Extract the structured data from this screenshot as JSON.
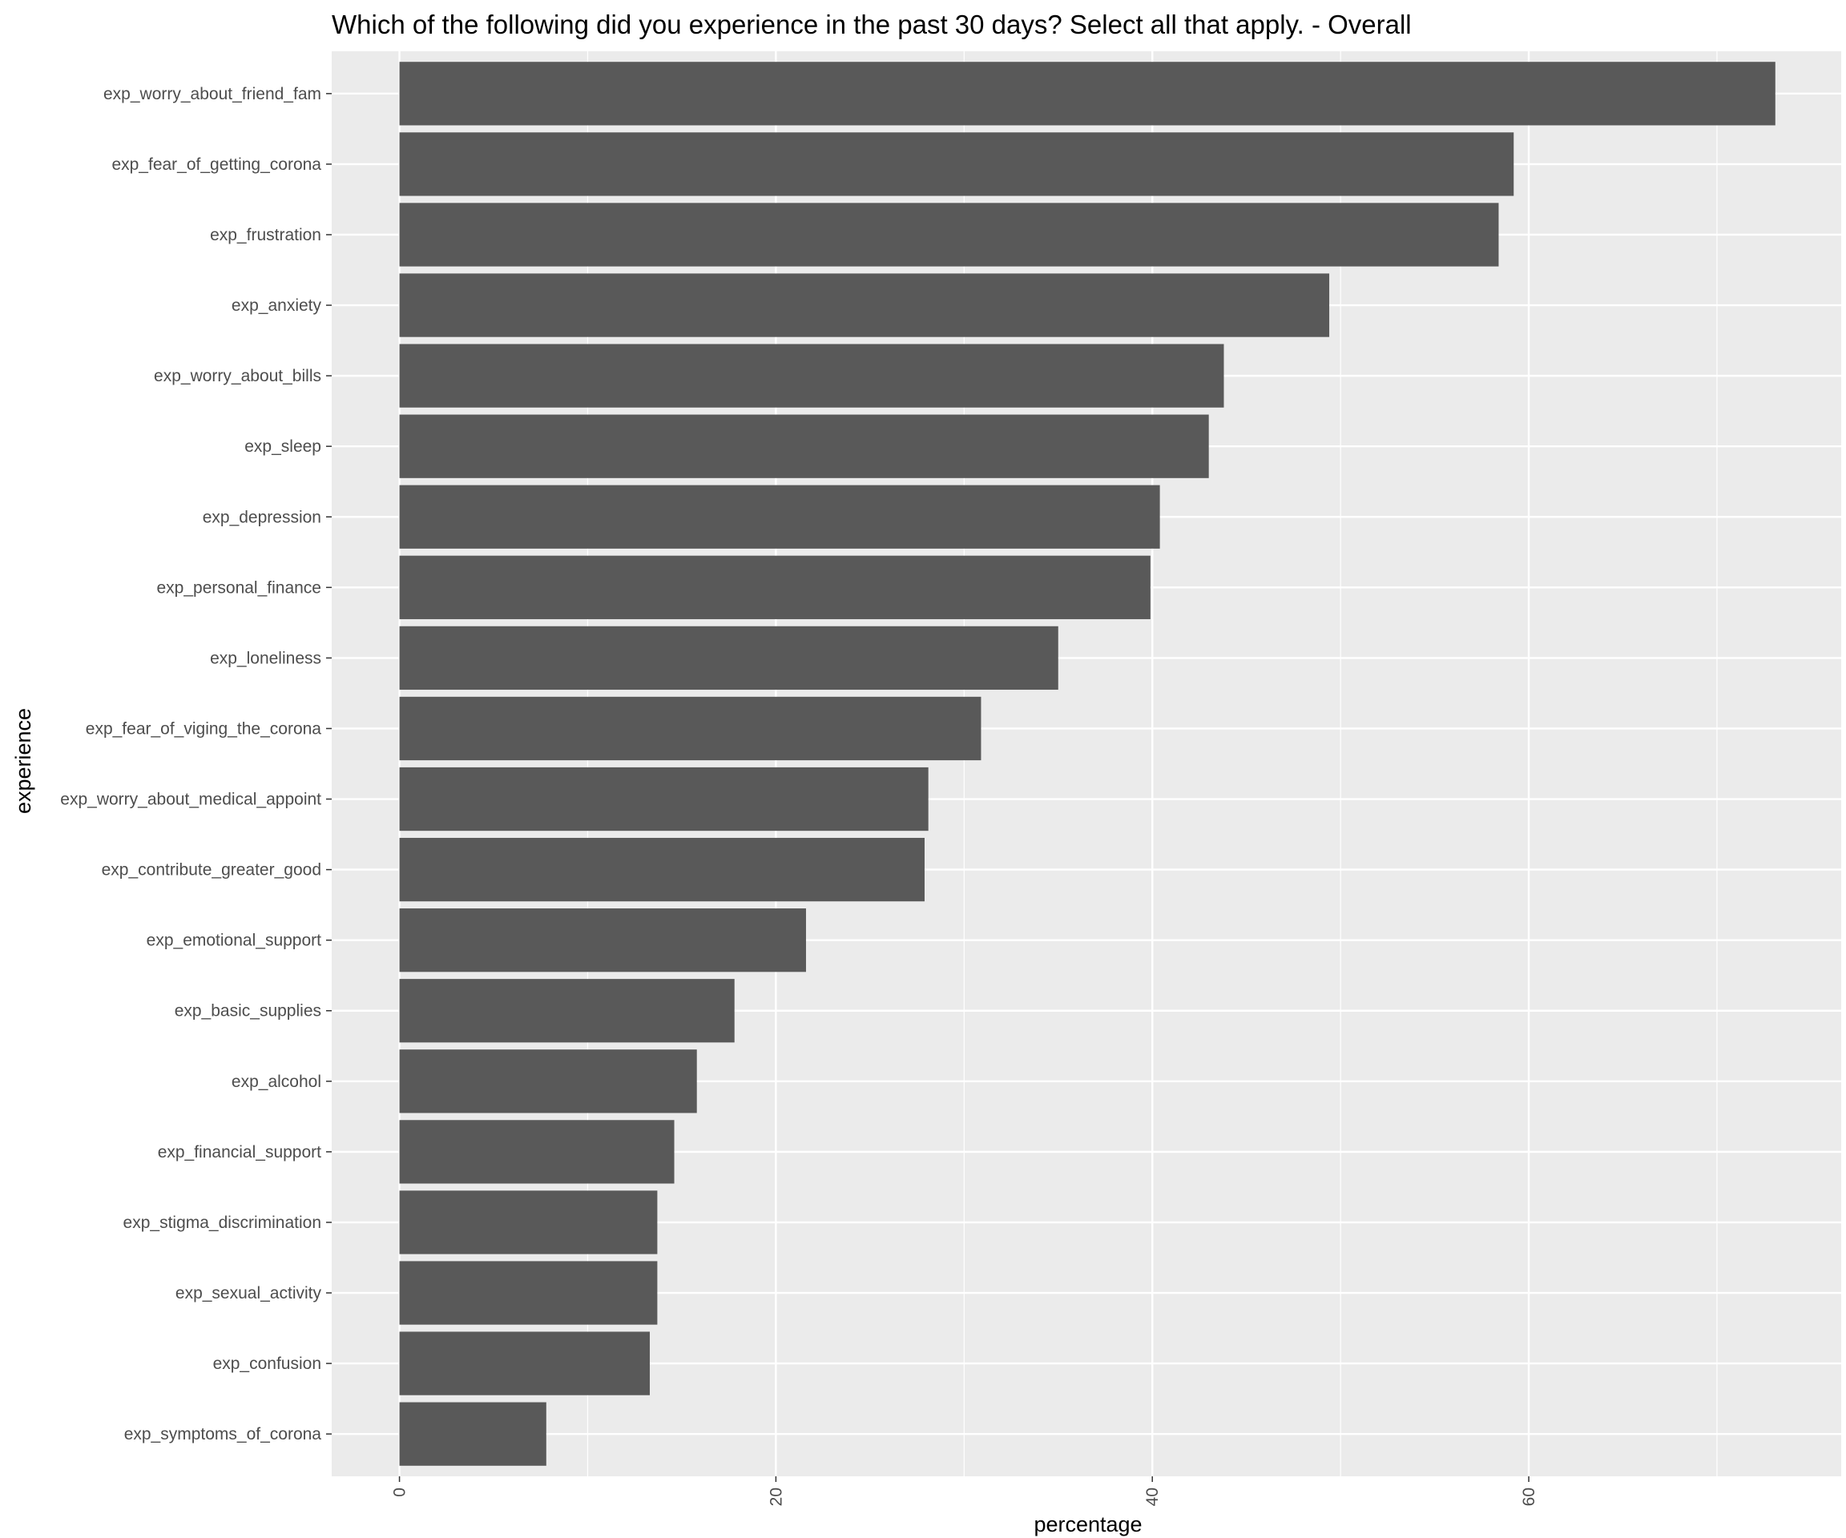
{
  "chart_data": {
    "type": "bar",
    "orientation": "horizontal",
    "title": "Which of the following did you experience in the past 30 days? Select all that apply. - Overall",
    "xlabel": "percentage",
    "ylabel": "experience",
    "xlim": [
      -3.6,
      76.6
    ],
    "x_ticks": [
      0,
      20,
      40,
      60
    ],
    "x_tick_labels": [
      "0",
      "20",
      "40",
      "60"
    ],
    "grid": true,
    "legend": "none",
    "colors": {
      "panel": "#ebebeb",
      "grid": "#ffffff",
      "bar": "#595959",
      "tick": "#333333"
    },
    "categories": [
      "exp_worry_about_friend_fam",
      "exp_fear_of_getting_corona",
      "exp_frustration",
      "exp_anxiety",
      "exp_worry_about_bills",
      "exp_sleep",
      "exp_depression",
      "exp_personal_finance",
      "exp_loneliness",
      "exp_fear_of_viging_the_corona",
      "exp_worry_about_medical_appoint",
      "exp_contribute_greater_good",
      "exp_emotional_support",
      "exp_basic_supplies",
      "exp_alcohol",
      "exp_financial_support",
      "exp_stigma_discrimination",
      "exp_sexual_activity",
      "exp_confusion",
      "exp_symptoms_of_corona"
    ],
    "values": [
      73.1,
      59.2,
      58.4,
      49.4,
      43.8,
      43.0,
      40.4,
      39.9,
      35.0,
      30.9,
      28.1,
      27.9,
      21.6,
      17.8,
      15.8,
      14.6,
      13.7,
      13.7,
      13.3,
      7.8
    ]
  }
}
